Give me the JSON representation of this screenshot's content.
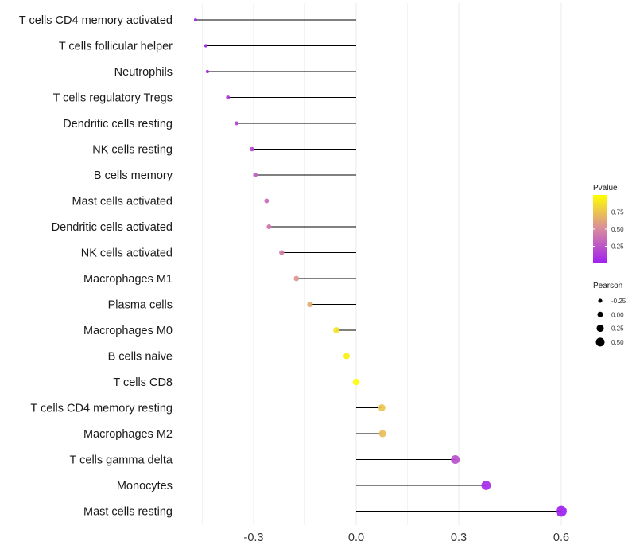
{
  "chart_data": {
    "type": "lollipop",
    "title": "",
    "xlabel": "",
    "ylabel": "",
    "xlim": [
      -0.47,
      0.62
    ],
    "xticks": [
      -0.3,
      0.0,
      0.3,
      0.6
    ],
    "xtick_labels": [
      "-0.3",
      "0.0",
      "0.3",
      "0.6"
    ],
    "grid": "vertical",
    "categories": [
      "T cells CD4 memory activated",
      "T cells follicular helper",
      "Neutrophils",
      "T cells regulatory  Tregs",
      "Dendritic cells resting",
      "NK cells resting",
      "B cells memory",
      "Mast cells activated",
      "Dendritic cells activated",
      "NK cells activated",
      "Macrophages M1",
      "Plasma cells",
      "Macrophages M0",
      "B cells naive",
      "T cells CD8",
      "T cells CD4 memory resting",
      "Macrophages M2",
      "T cells gamma delta",
      "Monocytes",
      "Mast cells resting"
    ],
    "pearson": [
      -0.47,
      -0.44,
      -0.435,
      -0.375,
      -0.35,
      -0.305,
      -0.295,
      -0.262,
      -0.255,
      -0.218,
      -0.175,
      -0.135,
      -0.058,
      -0.028,
      0.0,
      0.075,
      0.077,
      0.29,
      0.38,
      0.6
    ],
    "pvalue": [
      0.01,
      0.01,
      0.02,
      0.1,
      0.15,
      0.2,
      0.3,
      0.35,
      0.4,
      0.45,
      0.55,
      0.65,
      0.88,
      0.93,
      0.99,
      0.75,
      0.72,
      0.22,
      0.05,
      0.0
    ],
    "legend": {
      "color": {
        "title": "Pvalue",
        "breaks": [
          0.25,
          0.5,
          0.75
        ],
        "labels": [
          "0.25",
          "0.50",
          "0.75"
        ],
        "low_color": "#a020f0",
        "mid_color": "#d88aa0",
        "high_color": "#ffff00",
        "position": "right"
      },
      "size": {
        "title": "Pearson",
        "labels": [
          "-0.25",
          "0.00",
          "0.25",
          "0.50"
        ],
        "values": [
          -0.25,
          0.0,
          0.25,
          0.5
        ],
        "position": "right"
      }
    }
  }
}
